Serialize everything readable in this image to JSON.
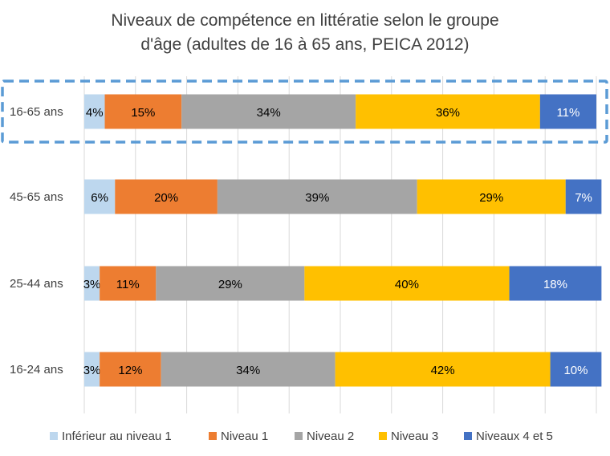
{
  "chart_data": {
    "type": "bar",
    "orientation": "horizontal",
    "stacked": "100%",
    "title": "Niveaux de compétence en littératie selon le groupe d'âge (adultes de 16 à 65 ans, PEICA 2012)",
    "title_lines": [
      "Niveaux de compétence en littératie selon le groupe",
      "d'âge (adultes de 16 à 65 ans, PEICA 2012)"
    ],
    "categories": [
      "16-65 ans",
      "45-65 ans",
      "25-44 ans",
      "16-24 ans"
    ],
    "highlighted_category": "16-65 ans",
    "series": [
      {
        "name": "Inférieur au niveau 1",
        "color": "#BDD7EE",
        "label_color": "#000000",
        "values": [
          4,
          6,
          3,
          3
        ]
      },
      {
        "name": "Niveau 1",
        "color": "#ED7D31",
        "label_color": "#000000",
        "values": [
          15,
          20,
          11,
          12
        ]
      },
      {
        "name": "Niveau 2",
        "color": "#A5A5A5",
        "label_color": "#000000",
        "values": [
          34,
          39,
          29,
          34
        ]
      },
      {
        "name": "Niveau 3",
        "color": "#FFC000",
        "label_color": "#000000",
        "values": [
          36,
          29,
          40,
          42
        ]
      },
      {
        "name": "Niveaux 4 et 5",
        "color": "#4472C4",
        "label_color": "#ffffff",
        "values": [
          11,
          7,
          18,
          10
        ]
      }
    ],
    "value_suffix": "%",
    "xlim": [
      0,
      100
    ],
    "grid": "vertical",
    "legend_position": "bottom",
    "highlight_color": "#5B9BD5"
  }
}
